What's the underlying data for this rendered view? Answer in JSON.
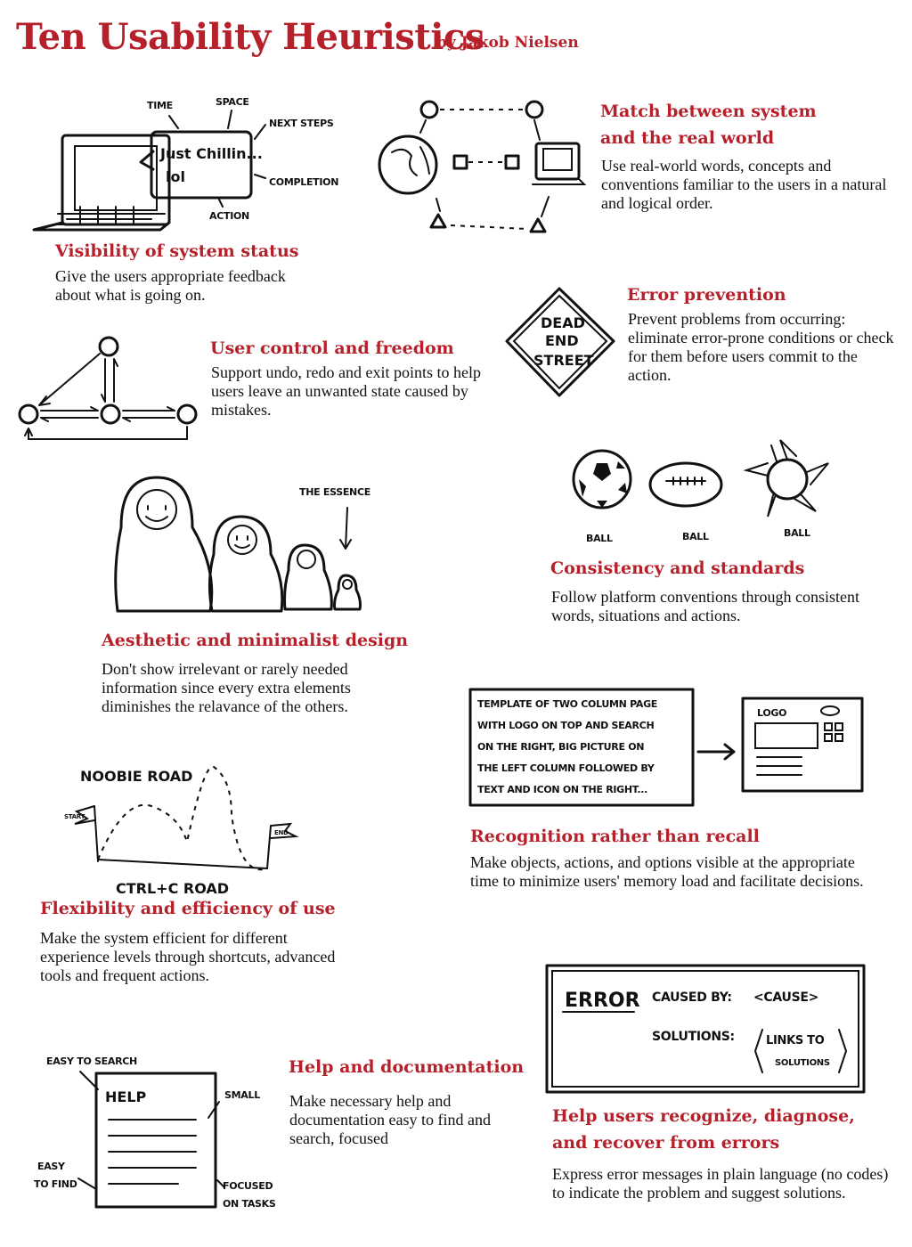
{
  "header": {
    "title": "Ten Usability Heuristics",
    "byline": "by Jakob Nielsen"
  },
  "heuristics": [
    {
      "title": "Visibility of system status",
      "body": "Give the users appropriate feedback about what is going on.",
      "sketch": {
        "bubble_line1": "Just Chillin...",
        "bubble_line2": "lol",
        "labels": [
          "TIME",
          "SPACE",
          "NEXT STEPS",
          "COMPLETION",
          "ACTION"
        ]
      }
    },
    {
      "title_line1": "Match between system",
      "title_line2": "and the real world",
      "body": "Use real-world words, concepts and conventions familiar to the users in a natural and logical order."
    },
    {
      "title": "User control and freedom",
      "body": "Support undo, redo and exit points to help users leave an unwanted state caused by mistakes."
    },
    {
      "title": "Error prevention",
      "body": "Prevent problems from occurring: eliminate error-prone conditions or check for them before users commit to the action.",
      "sketch": {
        "sign_line1": "DEAD",
        "sign_line2": "END",
        "sign_line3": "STREET"
      }
    },
    {
      "title": "Consistency and standards",
      "body": "Follow platform conventions through consistent words, situations and actions.",
      "sketch": {
        "labels": [
          "BALL",
          "BALL",
          "BALL"
        ]
      }
    },
    {
      "title": "Aesthetic and minimalist design",
      "body": "Don't show irrelevant or rarely needed information since every extra elements diminishes the relavance of the others.",
      "sketch": {
        "note": "THE ESSENCE"
      }
    },
    {
      "title": "Recognition rather than recall",
      "body": "Make objects, actions, and options visible at the appropriate time to minimize users' memory load and facilitate decisions.",
      "sketch": {
        "lines": [
          "TEMPLATE OF TWO COLUMN PAGE",
          "WITH LOGO ON TOP AND SEARCH",
          "ON THE RIGHT, BIG PICTURE ON",
          "THE LEFT COLUMN FOLLOWED BY",
          "TEXT AND ICON ON THE RIGHT..."
        ],
        "logo": "LOGO"
      }
    },
    {
      "title": "Flexibility and efficiency of use",
      "body": "Make the system efficient for different experience levels through shortcuts, advanced tools and frequent actions.",
      "sketch": {
        "top_road": "NOOBIE ROAD",
        "bottom_road": "CTRL+C ROAD",
        "start": "START",
        "end": "END"
      }
    },
    {
      "title": "Help and documentation",
      "body": "Make necessary help and documentation easy to find and search, focused",
      "sketch": {
        "doc": "HELP",
        "labels": [
          "EASY TO SEARCH",
          "SMALL",
          "EASY",
          "TO FIND",
          "FOCUSED",
          "ON TASKS"
        ]
      }
    },
    {
      "title_line1": "Help users recognize, diagnose,",
      "title_line2": "and recover from errors",
      "body": "Express error messages in plain language (no codes) to indicate the problem and suggest solutions.",
      "sketch": {
        "error": "ERROR",
        "caused": "CAUSED BY:",
        "cause": "<CAUSE>",
        "solutions": "SOLUTIONS:",
        "links1": "LINKS TO",
        "links2": "SOLUTIONS"
      }
    }
  ]
}
